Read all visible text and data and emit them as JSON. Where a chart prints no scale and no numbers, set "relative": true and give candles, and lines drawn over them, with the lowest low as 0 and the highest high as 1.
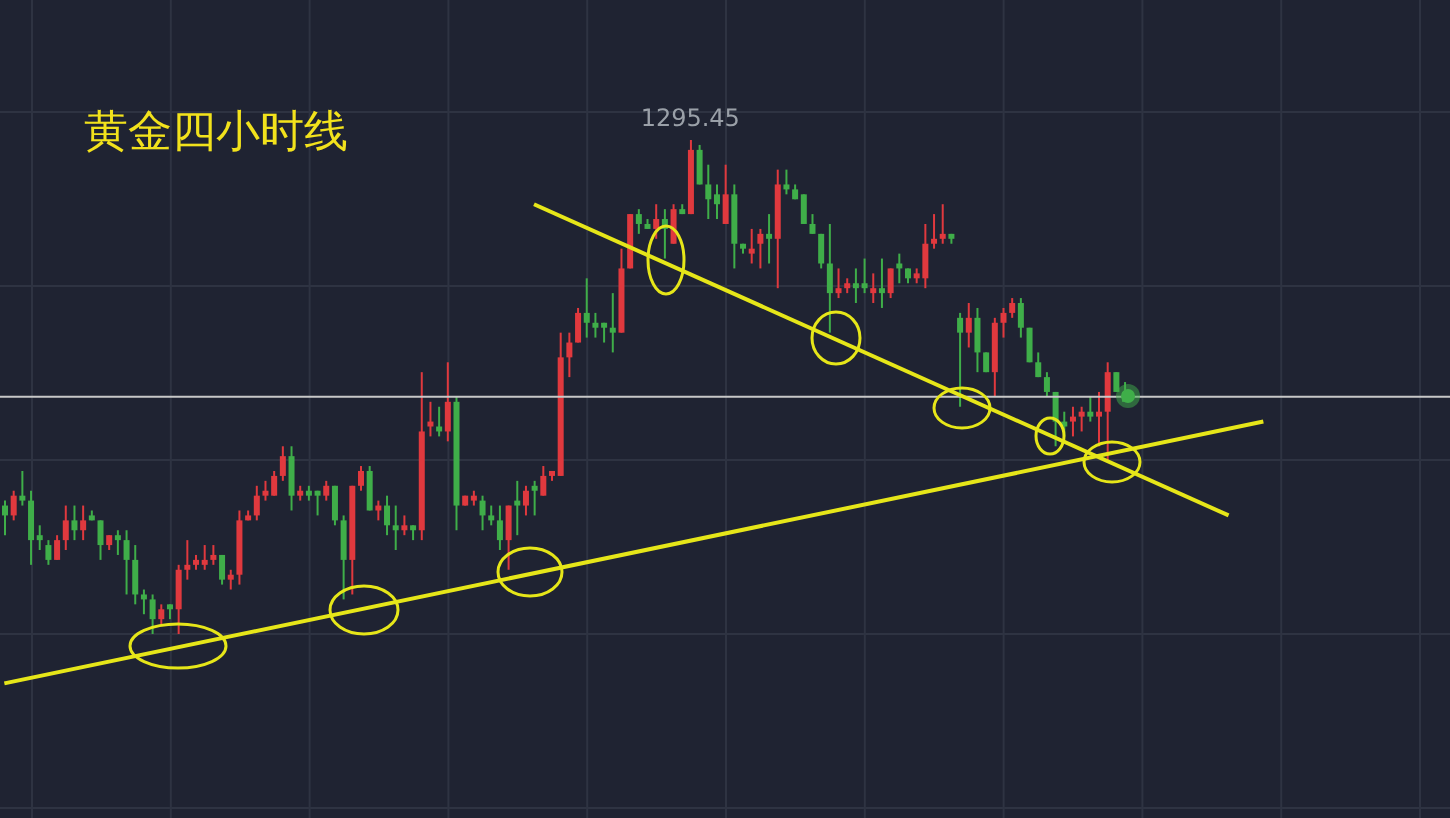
{
  "chart_data": {
    "type": "candlestick",
    "title": "黄金四小时线",
    "relative": true,
    "tick_labels": false,
    "grid": true,
    "categories": [
      null,
      null,
      null,
      null,
      null,
      null,
      null,
      null,
      null,
      null,
      null,
      null,
      null,
      null,
      null,
      null,
      null,
      null,
      null,
      null,
      null,
      null,
      null,
      null,
      null,
      null,
      null,
      null,
      null,
      null,
      null,
      null,
      null,
      null,
      null,
      null,
      null,
      null,
      null,
      null,
      null,
      null,
      null,
      null,
      null,
      null,
      null,
      null,
      null,
      null,
      null,
      null,
      null,
      null,
      null,
      null,
      null,
      null,
      null,
      null,
      null,
      null,
      null,
      null,
      null,
      null,
      null,
      null,
      null,
      null,
      null,
      null,
      null,
      null,
      null,
      null,
      null,
      null,
      null,
      null,
      null,
      null,
      null,
      null,
      null,
      null,
      null,
      null,
      null,
      null,
      null,
      null,
      null,
      null,
      null,
      null,
      null,
      null,
      null,
      null,
      null,
      null,
      null,
      null,
      null,
      null,
      null,
      null,
      null,
      null,
      null,
      null,
      null,
      null,
      null,
      null,
      null,
      null,
      null,
      null,
      null,
      null,
      null,
      null,
      null,
      null,
      null,
      null,
      null,
      null,
      null,
      null,
      null,
      null,
      null,
      null,
      null,
      null,
      null,
      null,
      null,
      null,
      null,
      null,
      null,
      null,
      null,
      null,
      null,
      null,
      null,
      null,
      null,
      null,
      null,
      null,
      null,
      null,
      null,
      null,
      null,
      null,
      null,
      null,
      null,
      null,
      null
    ],
    "ohlc": [
      [
        0.26,
        0.27,
        0.2,
        0.24
      ],
      [
        0.24,
        0.29,
        0.23,
        0.28
      ],
      [
        0.28,
        0.33,
        0.26,
        0.27
      ],
      [
        0.27,
        0.29,
        0.14,
        0.19
      ],
      [
        0.2,
        0.22,
        0.17,
        0.19
      ],
      [
        0.18,
        0.19,
        0.14,
        0.15
      ],
      [
        0.15,
        0.2,
        0.15,
        0.19
      ],
      [
        0.19,
        0.26,
        0.17,
        0.23
      ],
      [
        0.23,
        0.26,
        0.19,
        0.21
      ],
      [
        0.21,
        0.26,
        0.19,
        0.23
      ],
      [
        0.24,
        0.25,
        0.23,
        0.23
      ],
      [
        0.23,
        0.23,
        0.15,
        0.18
      ],
      [
        0.18,
        0.2,
        0.17,
        0.2
      ],
      [
        0.2,
        0.21,
        0.16,
        0.19
      ],
      [
        0.19,
        0.21,
        0.08,
        0.15
      ],
      [
        0.15,
        0.18,
        0.06,
        0.08
      ],
      [
        0.08,
        0.09,
        0.04,
        0.07
      ],
      [
        0.07,
        0.08,
        0,
        0.03
      ],
      [
        0.03,
        0.06,
        0.02,
        0.05
      ],
      [
        0.06,
        0.06,
        0.03,
        0.05
      ],
      [
        0.05,
        0.14,
        0,
        0.13
      ],
      [
        0.13,
        0.19,
        0.11,
        0.14
      ],
      [
        0.14,
        0.16,
        0.13,
        0.15
      ],
      [
        0.14,
        0.18,
        0.13,
        0.15
      ],
      [
        0.15,
        0.18,
        0.14,
        0.16
      ],
      [
        0.16,
        0.16,
        0.1,
        0.11
      ],
      [
        0.11,
        0.13,
        0.09,
        0.12
      ],
      [
        0.12,
        0.25,
        0.1,
        0.23
      ],
      [
        0.23,
        0.25,
        0.23,
        0.24
      ],
      [
        0.24,
        0.3,
        0.23,
        0.28
      ],
      [
        0.28,
        0.31,
        0.27,
        0.29
      ],
      [
        0.28,
        0.33,
        0.28,
        0.32
      ],
      [
        0.32,
        0.38,
        0.31,
        0.36
      ],
      [
        0.36,
        0.38,
        0.25,
        0.28
      ],
      [
        0.28,
        0.3,
        0.27,
        0.29
      ],
      [
        0.29,
        0.3,
        0.27,
        0.28
      ],
      [
        0.29,
        0.29,
        0.24,
        0.28
      ],
      [
        0.28,
        0.31,
        0.27,
        0.3
      ],
      [
        0.3,
        0.3,
        0.22,
        0.23
      ],
      [
        0.23,
        0.24,
        0.07,
        0.15
      ],
      [
        0.15,
        0.3,
        0.08,
        0.3
      ],
      [
        0.3,
        0.34,
        0.29,
        0.33
      ],
      [
        0.33,
        0.34,
        0.25,
        0.25
      ],
      [
        0.25,
        0.27,
        0.23,
        0.26
      ],
      [
        0.26,
        0.28,
        0.2,
        0.22
      ],
      [
        0.22,
        0.26,
        0.17,
        0.21
      ],
      [
        0.21,
        0.24,
        0.2,
        0.22
      ],
      [
        0.22,
        0.22,
        0.19,
        0.21
      ],
      [
        0.21,
        0.53,
        0.19,
        0.41
      ],
      [
        0.42,
        0.47,
        0.4,
        0.43
      ],
      [
        0.42,
        0.46,
        0.4,
        0.41
      ],
      [
        0.41,
        0.55,
        0.39,
        0.47
      ],
      [
        0.47,
        0.48,
        0.21,
        0.26
      ],
      [
        0.26,
        0.28,
        0.26,
        0.28
      ],
      [
        0.27,
        0.29,
        0.26,
        0.28
      ],
      [
        0.27,
        0.28,
        0.21,
        0.24
      ],
      [
        0.24,
        0.26,
        0.22,
        0.23
      ],
      [
        0.23,
        0.26,
        0.17,
        0.19
      ],
      [
        0.19,
        0.26,
        0.13,
        0.26
      ],
      [
        0.27,
        0.31,
        0.2,
        0.26
      ],
      [
        0.26,
        0.3,
        0.24,
        0.29
      ],
      [
        0.3,
        0.31,
        0.24,
        0.29
      ],
      [
        0.28,
        0.34,
        0.28,
        0.32
      ],
      [
        0.32,
        0.33,
        0.31,
        0.33
      ],
      [
        0.32,
        0.61,
        0.32,
        0.56
      ],
      [
        0.56,
        0.61,
        0.52,
        0.59
      ],
      [
        0.59,
        0.66,
        0.59,
        0.65
      ],
      [
        0.65,
        0.72,
        0.6,
        0.63
      ],
      [
        0.63,
        0.65,
        0.6,
        0.62
      ],
      [
        0.63,
        0.63,
        0.59,
        0.62
      ],
      [
        0.62,
        0.69,
        0.57,
        0.61
      ],
      [
        0.61,
        0.78,
        0.61,
        0.74
      ],
      [
        0.74,
        0.85,
        0.74,
        0.85
      ],
      [
        0.85,
        0.86,
        0.81,
        0.83
      ],
      [
        0.83,
        0.84,
        0.82,
        0.82
      ],
      [
        0.82,
        0.87,
        0.8,
        0.84
      ],
      [
        0.84,
        0.86,
        0.76,
        0.82
      ],
      [
        0.79,
        0.87,
        0.79,
        0.86
      ],
      [
        0.86,
        0.87,
        0.85,
        0.85
      ],
      [
        0.85,
        1,
        0.85,
        0.98
      ],
      [
        0.98,
        0.99,
        0.91,
        0.91
      ],
      [
        0.91,
        0.95,
        0.84,
        0.88
      ],
      [
        0.89,
        0.91,
        0.84,
        0.87
      ],
      [
        0.83,
        0.95,
        0.83,
        0.89
      ],
      [
        0.89,
        0.91,
        0.74,
        0.79
      ],
      [
        0.79,
        0.79,
        0.77,
        0.78
      ],
      [
        0.77,
        0.82,
        0.75,
        0.78
      ],
      [
        0.79,
        0.82,
        0.74,
        0.81
      ],
      [
        0.81,
        0.85,
        0.75,
        0.8
      ],
      [
        0.8,
        0.94,
        0.7,
        0.91
      ],
      [
        0.91,
        0.94,
        0.89,
        0.9
      ],
      [
        0.9,
        0.91,
        0.88,
        0.88
      ],
      [
        0.89,
        0.89,
        0.83,
        0.83
      ],
      [
        0.83,
        0.85,
        0.81,
        0.81
      ],
      [
        0.81,
        0.81,
        0.74,
        0.75
      ],
      [
        0.75,
        0.83,
        0.61,
        0.69
      ],
      [
        0.69,
        0.74,
        0.68,
        0.7
      ],
      [
        0.7,
        0.72,
        0.69,
        0.71
      ],
      [
        0.71,
        0.74,
        0.67,
        0.7
      ],
      [
        0.71,
        0.76,
        0.69,
        0.7
      ],
      [
        0.69,
        0.73,
        0.67,
        0.7
      ],
      [
        0.7,
        0.76,
        0.66,
        0.69
      ],
      [
        0.69,
        0.74,
        0.68,
        0.74
      ],
      [
        0.75,
        0.77,
        0.71,
        0.74
      ],
      [
        0.74,
        0.74,
        0.71,
        0.72
      ],
      [
        0.72,
        0.74,
        0.71,
        0.73
      ],
      [
        0.72,
        0.83,
        0.7,
        0.79
      ],
      [
        0.79,
        0.85,
        0.78,
        0.8
      ],
      [
        0.8,
        0.87,
        0.79,
        0.81
      ],
      [
        0.81,
        0.81,
        0.79,
        0.8
      ],
      [
        0.64,
        0.65,
        0.46,
        0.61
      ],
      [
        0.61,
        0.67,
        0.58,
        0.64
      ],
      [
        0.64,
        0.66,
        0.53,
        0.57
      ],
      [
        0.57,
        0.57,
        0.53,
        0.53
      ],
      [
        0.53,
        0.64,
        0.48,
        0.63
      ],
      [
        0.63,
        0.66,
        0.6,
        0.65
      ],
      [
        0.65,
        0.68,
        0.64,
        0.67
      ],
      [
        0.67,
        0.68,
        0.6,
        0.62
      ],
      [
        0.62,
        0.62,
        0.55,
        0.55
      ],
      [
        0.55,
        0.57,
        0.52,
        0.52
      ],
      [
        0.52,
        0.53,
        0.48,
        0.49
      ],
      [
        0.49,
        0.49,
        0.38,
        0.43
      ],
      [
        0.43,
        0.45,
        0.4,
        0.42
      ],
      [
        0.43,
        0.46,
        0.4,
        0.44
      ],
      [
        0.44,
        0.46,
        0.41,
        0.45
      ],
      [
        0.45,
        0.48,
        0.43,
        0.44
      ],
      [
        0.44,
        0.49,
        0.38,
        0.45
      ],
      [
        0.45,
        0.55,
        0.35,
        0.53
      ],
      [
        0.53,
        0.53,
        0.49,
        0.49
      ],
      [
        0.49,
        0.51,
        0.47,
        0.47
      ],
      null,
      null,
      null,
      null,
      null,
      null,
      null,
      null,
      null,
      null,
      null,
      null,
      null,
      null,
      null,
      null,
      null,
      null,
      null,
      null,
      null,
      null,
      null,
      null,
      null,
      null,
      null,
      null,
      null,
      null,
      null,
      null,
      null,
      null,
      null,
      null,
      null
    ],
    "colors": [
      "#3fae49",
      "#e0393e",
      "#3fae49",
      "#3fae49",
      "#3fae49",
      "#3fae49",
      "#e0393e",
      "#e0393e",
      "#3fae49",
      "#e0393e",
      "#3fae49",
      "#3fae49",
      "#e0393e",
      "#3fae49",
      "#3fae49",
      "#3fae49",
      "#3fae49",
      "#3fae49",
      "#e0393e",
      "#3fae49",
      "#e0393e",
      "#e0393e",
      "#e0393e",
      "#e0393e",
      "#e0393e",
      "#3fae49",
      "#e0393e",
      "#e0393e",
      "#e0393e",
      "#e0393e",
      "#e0393e",
      "#e0393e",
      "#e0393e",
      "#3fae49",
      "#e0393e",
      "#3fae49",
      "#3fae49",
      "#e0393e",
      "#3fae49",
      "#3fae49",
      "#e0393e",
      "#e0393e",
      "#3fae49",
      "#e0393e",
      "#3fae49",
      "#3fae49",
      "#e0393e",
      "#3fae49",
      "#e0393e",
      "#e0393e",
      "#3fae49",
      "#e0393e",
      "#3fae49",
      "#e0393e",
      "#e0393e",
      "#3fae49",
      "#3fae49",
      "#3fae49",
      "#e0393e",
      "#3fae49",
      "#e0393e",
      "#3fae49",
      "#e0393e",
      "#e0393e",
      "#e0393e",
      "#e0393e",
      "#e0393e",
      "#3fae49",
      "#3fae49",
      "#3fae49",
      "#3fae49",
      "#e0393e",
      "#e0393e",
      "#3fae49",
      "#3fae49",
      "#e0393e",
      "#3fae49",
      "#e0393e",
      "#3fae49",
      "#e0393e",
      "#3fae49",
      "#3fae49",
      "#3fae49",
      "#e0393e",
      "#3fae49",
      "#3fae49",
      "#e0393e",
      "#e0393e",
      "#3fae49",
      "#e0393e",
      "#3fae49",
      "#3fae49",
      "#3fae49",
      "#3fae49",
      "#3fae49",
      "#3fae49",
      "#e0393e",
      "#e0393e",
      "#3fae49",
      "#3fae49",
      "#e0393e",
      "#3fae49",
      "#e0393e",
      "#3fae49",
      "#3fae49",
      "#e0393e",
      "#e0393e",
      "#e0393e",
      "#e0393e",
      "#3fae49",
      "#3fae49",
      "#e0393e",
      "#3fae49",
      "#3fae49",
      "#e0393e",
      "#e0393e",
      "#e0393e",
      "#3fae49",
      "#3fae49",
      "#3fae49",
      "#3fae49",
      "#3fae49",
      "#3fae49",
      "#e0393e",
      "#e0393e",
      "#3fae49",
      "#e0393e",
      "#e0393e",
      "#3fae49",
      "#3fae49",
      null,
      null,
      null,
      null,
      null,
      null,
      null,
      null,
      null,
      null,
      null,
      null,
      null,
      null,
      null,
      null,
      null,
      null,
      null,
      null,
      null,
      null,
      null,
      null,
      null,
      null,
      null,
      null,
      null,
      null,
      null,
      null,
      null,
      null,
      null,
      null,
      null
    ],
    "series": [
      {
        "type": "line",
        "color": "#e6e619",
        "values": [
          null,
          null,
          null,
          null,
          null,
          null,
          null,
          null,
          null,
          null,
          null,
          null,
          null,
          null,
          null,
          null,
          null,
          null,
          null,
          null,
          null,
          null,
          null,
          null,
          null,
          null,
          null,
          null,
          null,
          null,
          null,
          null,
          null,
          null,
          null,
          null,
          null,
          null,
          null,
          null,
          null,
          null,
          null,
          null,
          null,
          null,
          null,
          null,
          null,
          null,
          null,
          null,
          null,
          null,
          null,
          null,
          null,
          null,
          null,
          null,
          null,
          0.87,
          null,
          null,
          null,
          null,
          null,
          null,
          null,
          null,
          null,
          null,
          null,
          null,
          null,
          null,
          null,
          null,
          null,
          null,
          null,
          null,
          null,
          null,
          null,
          null,
          null,
          null,
          null,
          null,
          null,
          null,
          null,
          null,
          null,
          null,
          null,
          null,
          null,
          null,
          null,
          null,
          null,
          null,
          null,
          null,
          null,
          null,
          null,
          null,
          null,
          null,
          null,
          null,
          null,
          null,
          null,
          null,
          null,
          null,
          null,
          null,
          null,
          null,
          null,
          null,
          null,
          null,
          null,
          null,
          null,
          null,
          null,
          null,
          null,
          null,
          null,
          null,
          null,
          null,
          null,
          0.24,
          null,
          null,
          null,
          null,
          null,
          null,
          null,
          null,
          null,
          null,
          null,
          null,
          null,
          null,
          null,
          null,
          null,
          null,
          null,
          null,
          null,
          null,
          null,
          null,
          null
        ]
      },
      {
        "type": "line",
        "color": "#e6e619",
        "values": [
          -0.1,
          null,
          null,
          null,
          null,
          null,
          null,
          null,
          null,
          null,
          null,
          null,
          null,
          null,
          null,
          null,
          null,
          null,
          null,
          null,
          null,
          null,
          null,
          null,
          null,
          null,
          null,
          null,
          null,
          null,
          null,
          null,
          null,
          null,
          null,
          null,
          null,
          null,
          null,
          null,
          null,
          null,
          null,
          null,
          null,
          null,
          null,
          null,
          null,
          null,
          null,
          null,
          null,
          null,
          null,
          null,
          null,
          null,
          null,
          null,
          null,
          null,
          null,
          null,
          null,
          null,
          null,
          null,
          null,
          null,
          null,
          null,
          null,
          null,
          null,
          null,
          null,
          null,
          null,
          null,
          null,
          null,
          null,
          null,
          null,
          null,
          null,
          null,
          null,
          null,
          null,
          null,
          null,
          null,
          null,
          null,
          null,
          null,
          null,
          null,
          null,
          null,
          null,
          null,
          null,
          null,
          null,
          null,
          null,
          null,
          null,
          null,
          null,
          null,
          null,
          null,
          null,
          null,
          null,
          null,
          null,
          null,
          null,
          null,
          null,
          null,
          null,
          null,
          null,
          null,
          null,
          null,
          null,
          null,
          null,
          null,
          null,
          null,
          null,
          null,
          null,
          null,
          null,
          null,
          null,
          0.43,
          null,
          null,
          null,
          null,
          null,
          null,
          null,
          null,
          null,
          null,
          null,
          null,
          null,
          null,
          null,
          null,
          null,
          null,
          null,
          null,
          null
        ]
      }
    ],
    "ref_lines": [
      {
        "axis": "y",
        "value": 0.48,
        "color": "#c8c8c8"
      }
    ],
    "annotations": [
      {
        "text": "1295.45",
        "y": 1
      }
    ]
  }
}
